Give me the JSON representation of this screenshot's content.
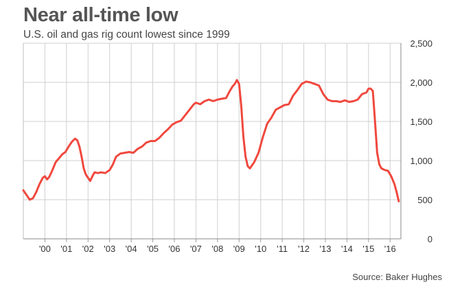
{
  "chart_data": {
    "type": "line",
    "title": "Near all-time low",
    "subtitle": "U.S. oil and gas rig count lowest since 1999",
    "source": "Source: Baker Hughes",
    "xlabel": "",
    "ylabel": "",
    "xlim": [
      1999.0,
      2016.5
    ],
    "ylim": [
      0,
      2500
    ],
    "yticks": [
      0,
      500,
      1000,
      1500,
      2000,
      2500
    ],
    "ytick_labels": [
      "0",
      "500",
      "1,000",
      "1,500",
      "2,000",
      "2,500"
    ],
    "xticks": [
      2000,
      2001,
      2002,
      2003,
      2004,
      2005,
      2006,
      2007,
      2008,
      2009,
      2010,
      2011,
      2012,
      2013,
      2014,
      2015,
      2016
    ],
    "xtick_labels": [
      "'00",
      "'01",
      "'02",
      "'03",
      "'04",
      "'05",
      "'06",
      "'07",
      "'08",
      "'09",
      "'10",
      "'11",
      "'12",
      "'13",
      "'14",
      "'15",
      "'16"
    ],
    "grid": true,
    "y_axis_position": "right",
    "line_color": "#f0483e",
    "series": [
      {
        "x": [
          1999.0,
          1999.15,
          1999.3,
          1999.45,
          1999.6,
          1999.75,
          1999.9,
          2000.0,
          2000.1,
          2000.2,
          2000.35,
          2000.5,
          2000.65,
          2000.8,
          2000.95,
          2001.1,
          2001.25,
          2001.4,
          2001.5,
          2001.6,
          2001.7,
          2001.8,
          2001.9,
          2002.0,
          2002.1,
          2002.2,
          2002.3,
          2002.45,
          2002.6,
          2002.8,
          2003.0,
          2003.15,
          2003.3,
          2003.5,
          2003.7,
          2003.9,
          2004.1,
          2004.3,
          2004.5,
          2004.7,
          2004.9,
          2005.1,
          2005.3,
          2005.5,
          2005.7,
          2005.9,
          2006.1,
          2006.3,
          2006.5,
          2006.7,
          2006.9,
          2007.0,
          2007.2,
          2007.4,
          2007.6,
          2007.8,
          2008.0,
          2008.2,
          2008.4,
          2008.55,
          2008.7,
          2008.8,
          2008.9,
          2009.0,
          2009.1,
          2009.2,
          2009.3,
          2009.4,
          2009.5,
          2009.7,
          2009.9,
          2010.1,
          2010.3,
          2010.5,
          2010.7,
          2010.9,
          2011.1,
          2011.3,
          2011.5,
          2011.7,
          2011.9,
          2012.1,
          2012.3,
          2012.5,
          2012.7,
          2012.9,
          2013.1,
          2013.3,
          2013.5,
          2013.7,
          2013.9,
          2014.1,
          2014.3,
          2014.5,
          2014.7,
          2014.9,
          2015.0,
          2015.1,
          2015.2,
          2015.3,
          2015.4,
          2015.5,
          2015.6,
          2015.75,
          2015.9,
          2016.05,
          2016.2,
          2016.3,
          2016.4
        ],
        "values": [
          620,
          560,
          500,
          520,
          600,
          700,
          780,
          800,
          760,
          790,
          880,
          980,
          1030,
          1080,
          1110,
          1180,
          1240,
          1280,
          1260,
          1180,
          1050,
          900,
          820,
          780,
          740,
          800,
          850,
          840,
          850,
          840,
          880,
          950,
          1050,
          1090,
          1100,
          1110,
          1100,
          1150,
          1180,
          1230,
          1250,
          1250,
          1290,
          1350,
          1400,
          1460,
          1490,
          1510,
          1580,
          1650,
          1720,
          1740,
          1720,
          1760,
          1780,
          1760,
          1780,
          1790,
          1800,
          1880,
          1950,
          1980,
          2030,
          1980,
          1700,
          1300,
          1050,
          930,
          900,
          980,
          1100,
          1300,
          1470,
          1550,
          1650,
          1680,
          1710,
          1720,
          1830,
          1900,
          1980,
          2010,
          2000,
          1980,
          1960,
          1850,
          1780,
          1760,
          1760,
          1750,
          1770,
          1750,
          1760,
          1780,
          1850,
          1870,
          1920,
          1920,
          1890,
          1500,
          1100,
          950,
          900,
          880,
          870,
          800,
          700,
          600,
          480
        ]
      }
    ]
  }
}
